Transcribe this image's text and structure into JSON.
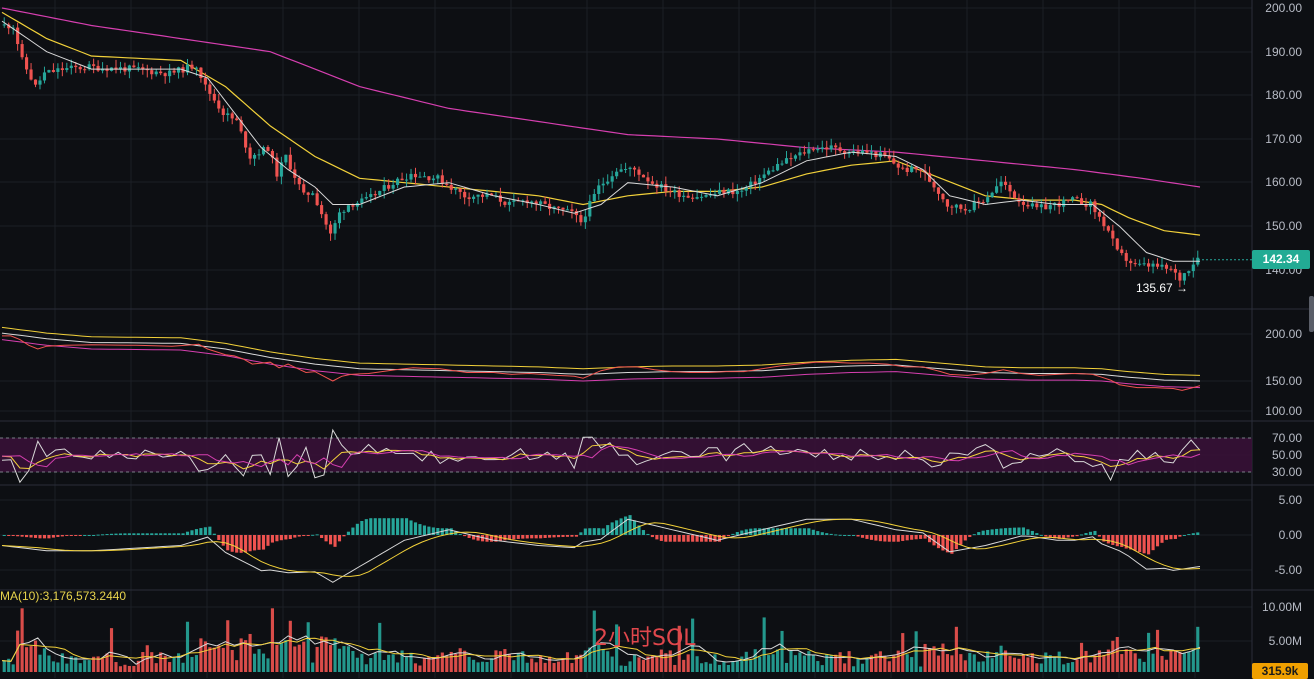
{
  "chart_data": [
    {
      "type": "candlestick",
      "pane": "price",
      "price_scale": [
        140,
        200
      ],
      "yticks": [
        "200.00",
        "190.00",
        "180.00",
        "170.00",
        "160.00",
        "150.00",
        "140.00"
      ],
      "last_price": "142.34",
      "low_marker": "135.67",
      "close_path": [
        [
          0,
          196
        ],
        [
          3,
          196
        ],
        [
          5,
          188
        ],
        [
          8,
          182
        ],
        [
          10,
          185
        ],
        [
          14,
          186
        ],
        [
          20,
          186.5
        ],
        [
          30,
          186
        ],
        [
          38,
          185
        ],
        [
          44,
          187
        ],
        [
          46,
          182
        ],
        [
          50,
          176
        ],
        [
          53,
          174
        ],
        [
          56,
          166
        ],
        [
          60,
          168
        ],
        [
          62,
          162
        ],
        [
          64,
          166
        ],
        [
          68,
          157
        ],
        [
          70,
          158
        ],
        [
          72,
          153
        ],
        [
          74,
          148
        ],
        [
          76,
          153
        ],
        [
          78,
          155
        ],
        [
          82,
          156
        ],
        [
          88,
          160
        ],
        [
          92,
          162
        ],
        [
          98,
          161
        ],
        [
          104,
          157
        ],
        [
          110,
          157
        ],
        [
          114,
          155
        ],
        [
          118,
          156
        ],
        [
          124,
          154
        ],
        [
          128,
          153
        ],
        [
          130,
          151
        ],
        [
          134,
          159
        ],
        [
          138,
          163
        ],
        [
          142,
          163
        ],
        [
          146,
          160
        ],
        [
          150,
          158
        ],
        [
          154,
          157
        ],
        [
          158,
          157
        ],
        [
          162,
          158
        ],
        [
          166,
          158
        ],
        [
          170,
          161
        ],
        [
          174,
          164
        ],
        [
          178,
          166
        ],
        [
          182,
          168
        ],
        [
          186,
          168
        ],
        [
          190,
          167
        ],
        [
          194,
          167
        ],
        [
          198,
          166
        ],
        [
          202,
          163
        ],
        [
          206,
          163
        ],
        [
          210,
          158
        ],
        [
          212,
          155
        ],
        [
          216,
          154
        ],
        [
          220,
          156
        ],
        [
          224,
          160
        ],
        [
          228,
          156
        ],
        [
          232,
          154
        ],
        [
          236,
          155
        ],
        [
          240,
          156
        ],
        [
          244,
          155
        ],
        [
          248,
          149
        ],
        [
          250,
          144
        ],
        [
          254,
          141
        ],
        [
          258,
          141
        ],
        [
          262,
          140
        ],
        [
          264,
          138
        ],
        [
          268,
          143
        ]
      ],
      "sma_fast": [
        [
          0,
          197
        ],
        [
          10,
          190
        ],
        [
          20,
          186
        ],
        [
          40,
          186
        ],
        [
          46,
          184
        ],
        [
          52,
          176
        ],
        [
          58,
          168
        ],
        [
          64,
          163
        ],
        [
          70,
          159
        ],
        [
          74,
          155
        ],
        [
          80,
          155
        ],
        [
          90,
          159
        ],
        [
          100,
          160
        ],
        [
          110,
          157
        ],
        [
          120,
          155
        ],
        [
          128,
          153
        ],
        [
          134,
          155
        ],
        [
          140,
          160
        ],
        [
          150,
          159
        ],
        [
          160,
          157
        ],
        [
          170,
          160
        ],
        [
          180,
          165
        ],
        [
          190,
          167
        ],
        [
          200,
          166
        ],
        [
          206,
          163
        ],
        [
          212,
          157
        ],
        [
          220,
          155
        ],
        [
          228,
          156
        ],
        [
          236,
          155
        ],
        [
          244,
          155
        ],
        [
          250,
          150
        ],
        [
          256,
          144
        ],
        [
          262,
          142
        ],
        [
          268,
          142
        ]
      ],
      "sma_mid": [
        [
          0,
          199
        ],
        [
          10,
          193
        ],
        [
          20,
          189
        ],
        [
          40,
          188
        ],
        [
          50,
          182
        ],
        [
          60,
          173
        ],
        [
          70,
          166
        ],
        [
          80,
          161
        ],
        [
          90,
          160
        ],
        [
          100,
          159
        ],
        [
          110,
          158
        ],
        [
          120,
          157
        ],
        [
          130,
          155
        ],
        [
          140,
          157
        ],
        [
          150,
          158
        ],
        [
          160,
          158
        ],
        [
          170,
          159
        ],
        [
          180,
          162
        ],
        [
          190,
          164
        ],
        [
          200,
          165
        ],
        [
          210,
          161
        ],
        [
          220,
          157
        ],
        [
          230,
          156
        ],
        [
          240,
          156
        ],
        [
          246,
          155
        ],
        [
          252,
          152
        ],
        [
          260,
          149
        ],
        [
          268,
          148
        ]
      ],
      "sma_slow": [
        [
          0,
          200
        ],
        [
          20,
          196
        ],
        [
          40,
          193
        ],
        [
          60,
          190
        ],
        [
          70,
          186
        ],
        [
          80,
          182
        ],
        [
          100,
          177
        ],
        [
          120,
          174
        ],
        [
          140,
          171
        ],
        [
          160,
          170
        ],
        [
          180,
          168
        ],
        [
          200,
          167
        ],
        [
          220,
          165
        ],
        [
          240,
          163
        ],
        [
          255,
          161
        ],
        [
          268,
          159
        ]
      ]
    },
    {
      "type": "line",
      "pane": "overlay",
      "yticks": [
        "200.00",
        "150.00",
        "100.00"
      ]
    },
    {
      "type": "line",
      "pane": "rsi",
      "yticks": [
        "70.00",
        "50.00",
        "30.00"
      ]
    },
    {
      "type": "bar",
      "pane": "macd",
      "yticks": [
        "5.00",
        "0.00",
        "-5.00"
      ]
    },
    {
      "type": "bar",
      "pane": "volume",
      "yticks": [
        "10.00M",
        "5.00M"
      ],
      "ma_label": "MA(10):3,176,573.2440",
      "last_volume": "315.9k"
    }
  ],
  "watermark": "2小时SOL",
  "colors": {
    "background": "#0d0f13",
    "grid": "#1c1f26",
    "up": "#26a69a",
    "down": "#ef5350",
    "sma_fast": "#d9d9d9",
    "sma_mid": "#f2d13a",
    "sma_slow": "#d63fb0",
    "rsi_band": "#3b1039",
    "badge_up": "#22ab94",
    "badge_vol": "#f0a000"
  }
}
